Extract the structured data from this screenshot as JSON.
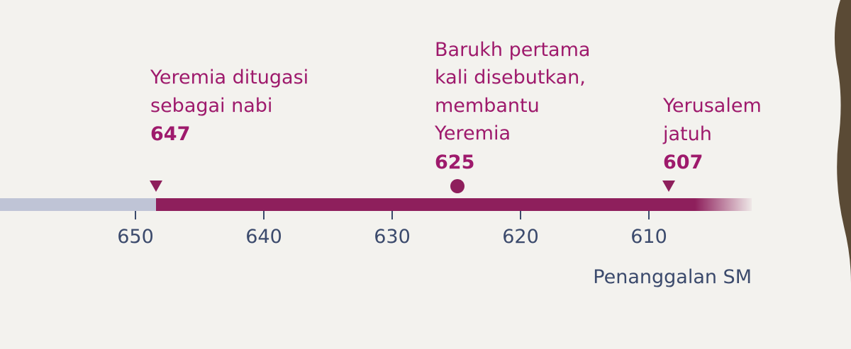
{
  "timeline": {
    "events": [
      {
        "label_lines": [
          "Yeremia ditugasi",
          "sebagai nabi"
        ],
        "year": 647
      },
      {
        "label_lines": [
          "Barukh pertama",
          "kali disebutkan,",
          "membantu",
          "Yeremia"
        ],
        "year": 625
      },
      {
        "label_lines": [
          "Yerusalem",
          "jatuh"
        ],
        "year": 607
      }
    ],
    "ticks": [
      650,
      640,
      630,
      620,
      610
    ],
    "axis_label": "Penanggalan SM"
  }
}
